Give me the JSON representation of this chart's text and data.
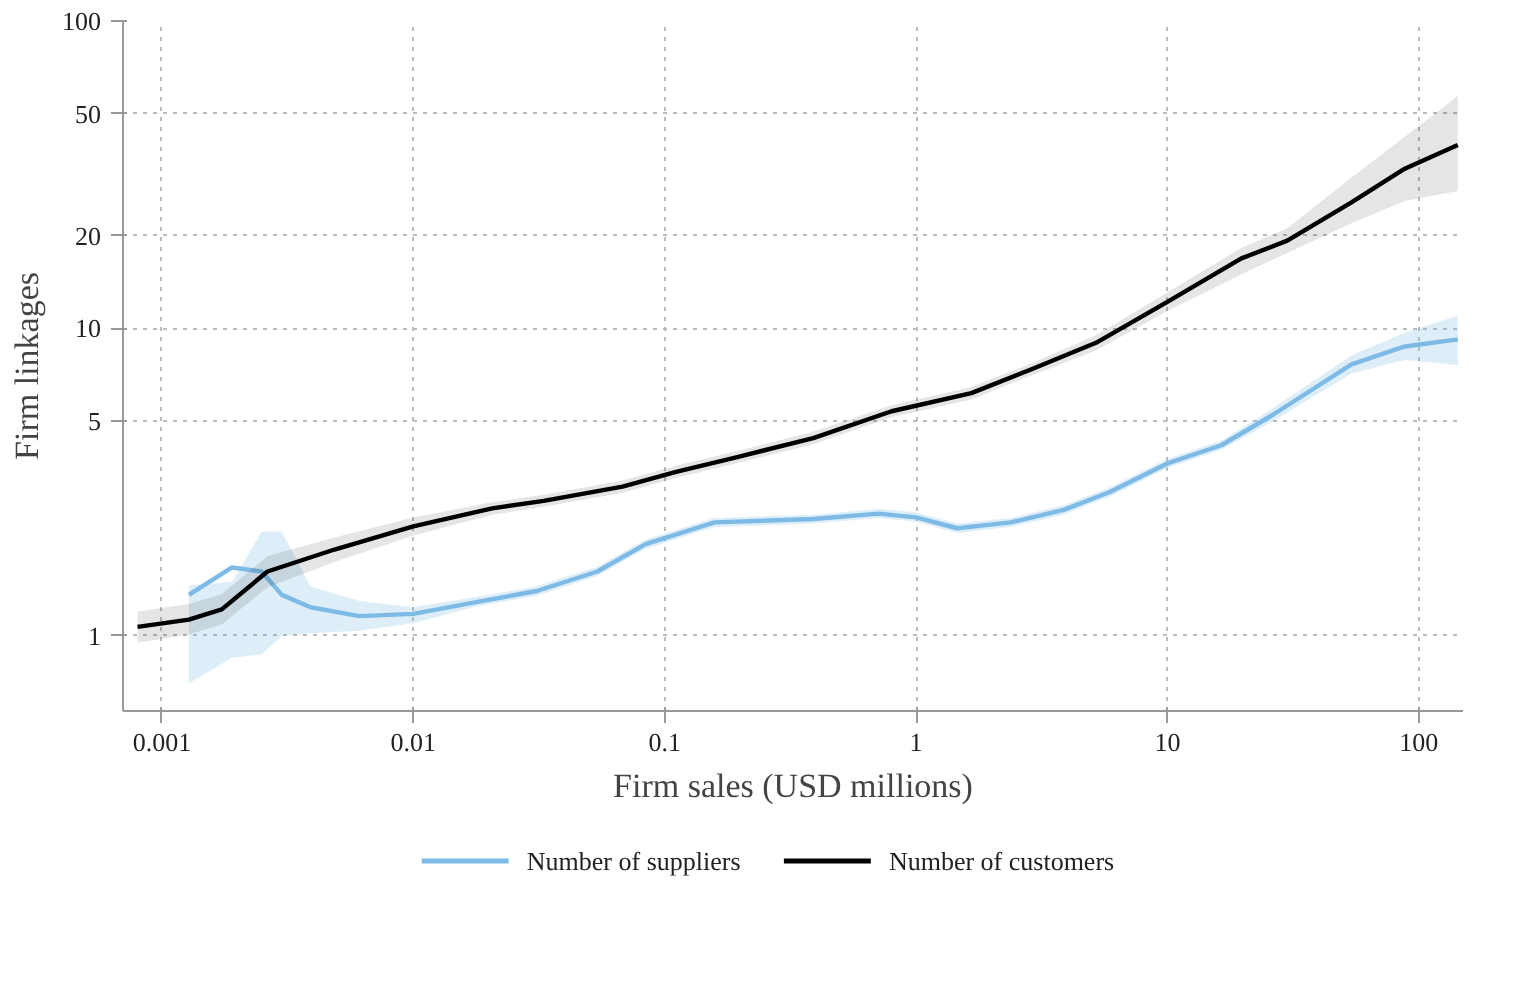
{
  "chart_data": {
    "type": "line",
    "xlabel": "Firm sales (USD millions)",
    "ylabel": "Firm linkages",
    "log": "xy",
    "xlim": [
      0.0007,
      150
    ],
    "ylim": [
      0.57,
      100
    ],
    "xticks": [
      0.001,
      0.01,
      0.1,
      1,
      10,
      100
    ],
    "yticks": [
      1,
      5,
      10,
      20,
      50,
      100
    ],
    "grid": true,
    "legend": "bottom",
    "marker": "none",
    "line_style": "solid",
    "series": [
      {
        "name": "Number of suppliers",
        "color": "#7dbbe6",
        "x": [
          0.00128,
          0.0019,
          0.00249,
          0.003,
          0.0039,
          0.0061,
          0.01,
          0.018,
          0.031,
          0.054,
          0.084,
          0.158,
          0.39,
          0.71,
          1,
          1.46,
          2.38,
          3.87,
          5.9,
          10,
          16.4,
          26.3,
          54,
          88,
          143
        ],
        "values": [
          1.36,
          1.67,
          1.62,
          1.36,
          1.24,
          1.16,
          1.18,
          1.29,
          1.4,
          1.62,
          1.99,
          2.34,
          2.4,
          2.5,
          2.43,
          2.24,
          2.34,
          2.57,
          2.94,
          3.64,
          4.17,
          5.24,
          7.64,
          8.74,
          9.22
        ],
        "lower": [
          0.7,
          0.85,
          0.87,
          1.0,
          1.02,
          1.04,
          1.1,
          1.25,
          1.35,
          1.57,
          1.92,
          2.26,
          2.32,
          2.42,
          2.35,
          2.16,
          2.26,
          2.48,
          2.84,
          3.52,
          4.03,
          4.99,
          7.14,
          7.9,
          7.6
        ],
        "upper": [
          1.46,
          1.5,
          2.18,
          2.18,
          1.45,
          1.3,
          1.24,
          1.34,
          1.45,
          1.68,
          2.06,
          2.42,
          2.48,
          2.59,
          2.52,
          2.32,
          2.42,
          2.66,
          3.04,
          3.77,
          4.32,
          5.5,
          8.17,
          9.7,
          11
        ]
      },
      {
        "name": "Number of customers",
        "color": "#000000",
        "x": [
          0.0008,
          0.00128,
          0.00173,
          0.00263,
          0.00486,
          0.01,
          0.0206,
          0.033,
          0.068,
          0.11,
          0.2,
          0.39,
          0.8,
          1.66,
          2.85,
          5.2,
          10,
          19.7,
          30,
          54,
          88,
          143
        ],
        "values": [
          1.07,
          1.13,
          1.22,
          1.62,
          1.91,
          2.27,
          2.6,
          2.75,
          3.06,
          3.41,
          3.84,
          4.4,
          5.38,
          6.16,
          7.34,
          8.98,
          12.2,
          16.9,
          19.3,
          25.7,
          33.1,
          39.5
        ],
        "lower": [
          0.95,
          1.01,
          1.09,
          1.44,
          1.74,
          2.12,
          2.48,
          2.63,
          2.92,
          3.26,
          3.67,
          4.2,
          5.14,
          5.88,
          7.01,
          8.48,
          11.4,
          15.0,
          17.6,
          22,
          26,
          28
        ],
        "upper": [
          1.2,
          1.27,
          1.37,
          1.82,
          2.09,
          2.43,
          2.72,
          2.88,
          3.2,
          3.57,
          4.02,
          4.61,
          5.63,
          6.45,
          7.68,
          9.51,
          13.1,
          18.3,
          21.2,
          31,
          42,
          57
        ]
      }
    ]
  }
}
